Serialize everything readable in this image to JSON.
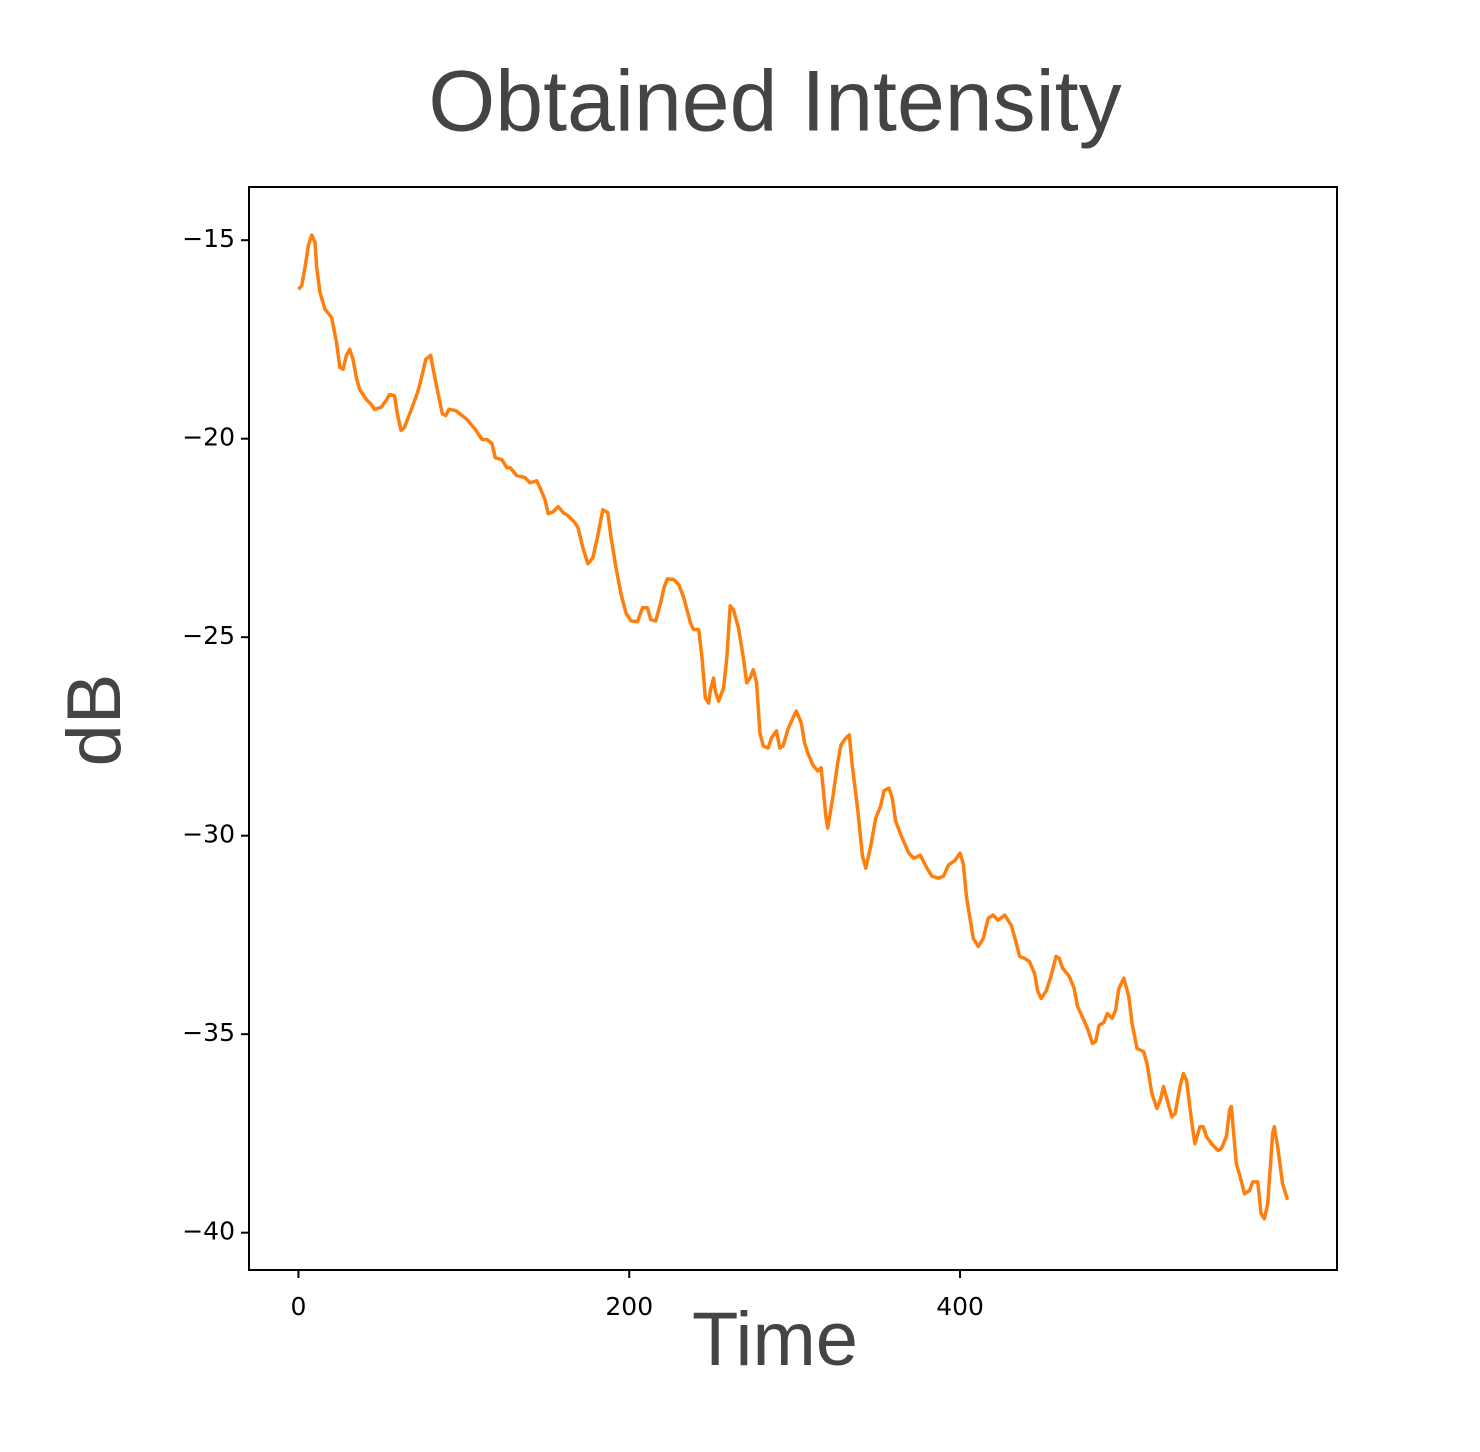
{
  "chart_data": {
    "type": "line",
    "title": "Obtained Intensity",
    "x_label": "Time",
    "y_label": "dB",
    "color": "#ff7f0e",
    "x": [
      0,
      2,
      4,
      6,
      8,
      10,
      11,
      13,
      16,
      18,
      20,
      23,
      25,
      27,
      29,
      31,
      33,
      35,
      37,
      41,
      44,
      46,
      50,
      53,
      55,
      58,
      60,
      62,
      64,
      68,
      72,
      74,
      77,
      80,
      81,
      84,
      87,
      89,
      91,
      95,
      99,
      102,
      107,
      111,
      114,
      117,
      119,
      123,
      126,
      128,
      132,
      137,
      140,
      144,
      146,
      149,
      151,
      154,
      157,
      160,
      163,
      167,
      169,
      172,
      175,
      178,
      181,
      184,
      187,
      189,
      192,
      195,
      198,
      201,
      205,
      208,
      211,
      213,
      216,
      219,
      221,
      223,
      227,
      230,
      233,
      237,
      239,
      242,
      244,
      246,
      248,
      249,
      251,
      252,
      254,
      257,
      259,
      261,
      263,
      266,
      269,
      271,
      273,
      275,
      277,
      279,
      281,
      284,
      286,
      289,
      291,
      293,
      296,
      299,
      301,
      304,
      306,
      308,
      311,
      314,
      316,
      319,
      320,
      323,
      326,
      328,
      331,
      333,
      335,
      338,
      341,
      343,
      346,
      349,
      352,
      354,
      357,
      359,
      361,
      365,
      369,
      372,
      376,
      380,
      383,
      387,
      390,
      393,
      397,
      400,
      402,
      404,
      406,
      408,
      411,
      414,
      417,
      420,
      423,
      427,
      431,
      434,
      436,
      439,
      442,
      445,
      447,
      449,
      452,
      455,
      458,
      460,
      462,
      466,
      469,
      471,
      473,
      477,
      480,
      482,
      484,
      487,
      489,
      492,
      494,
      496,
      499,
      502,
      504,
      507,
      511,
      513,
      516,
      519,
      521,
      523,
      525,
      528,
      530,
      533,
      535,
      537,
      540,
      542,
      545,
      547,
      549,
      552,
      556,
      558,
      561,
      563,
      564,
      567,
      569,
      572,
      575,
      577,
      580,
      582,
      584,
      586,
      589,
      590,
      592,
      595,
      598
    ],
    "values": [
      -16.24,
      -16.14,
      -15.68,
      -15.13,
      -14.87,
      -15.05,
      -15.68,
      -16.31,
      -16.74,
      -16.84,
      -16.94,
      -17.57,
      -18.2,
      -18.25,
      -17.9,
      -17.75,
      -18.0,
      -18.46,
      -18.76,
      -19.01,
      -19.14,
      -19.26,
      -19.21,
      -19.04,
      -18.89,
      -18.91,
      -19.42,
      -19.79,
      -19.72,
      -19.29,
      -18.84,
      -18.53,
      -18.0,
      -17.9,
      -18.15,
      -18.78,
      -19.37,
      -19.42,
      -19.26,
      -19.29,
      -19.42,
      -19.52,
      -19.77,
      -20.02,
      -20.02,
      -20.12,
      -20.48,
      -20.53,
      -20.73,
      -20.73,
      -20.93,
      -20.98,
      -21.11,
      -21.06,
      -21.23,
      -21.53,
      -21.89,
      -21.84,
      -21.71,
      -21.86,
      -21.94,
      -22.11,
      -22.24,
      -22.75,
      -23.15,
      -23.0,
      -22.44,
      -21.79,
      -21.86,
      -22.49,
      -23.25,
      -23.91,
      -24.39,
      -24.59,
      -24.61,
      -24.26,
      -24.26,
      -24.56,
      -24.59,
      -24.13,
      -23.75,
      -23.53,
      -23.55,
      -23.68,
      -24.01,
      -24.64,
      -24.81,
      -24.81,
      -25.52,
      -26.53,
      -26.66,
      -26.35,
      -26.03,
      -26.35,
      -26.61,
      -26.28,
      -25.52,
      -24.21,
      -24.31,
      -24.76,
      -25.52,
      -26.15,
      -26.03,
      -25.82,
      -26.15,
      -27.41,
      -27.74,
      -27.79,
      -27.54,
      -27.36,
      -27.79,
      -27.74,
      -27.31,
      -27.03,
      -26.86,
      -27.16,
      -27.66,
      -27.92,
      -28.22,
      -28.37,
      -28.29,
      -29.56,
      -29.81,
      -29.05,
      -28.17,
      -27.71,
      -27.54,
      -27.46,
      -28.29,
      -29.3,
      -30.51,
      -30.82,
      -30.26,
      -29.56,
      -29.25,
      -28.87,
      -28.8,
      -29.05,
      -29.63,
      -30.06,
      -30.44,
      -30.57,
      -30.49,
      -30.82,
      -31.02,
      -31.07,
      -31.02,
      -30.74,
      -30.62,
      -30.44,
      -30.72,
      -31.58,
      -32.08,
      -32.59,
      -32.79,
      -32.59,
      -32.08,
      -32.0,
      -32.13,
      -32.0,
      -32.26,
      -32.71,
      -33.04,
      -33.09,
      -33.17,
      -33.47,
      -33.92,
      -34.1,
      -33.92,
      -33.54,
      -33.04,
      -33.09,
      -33.34,
      -33.54,
      -33.85,
      -34.3,
      -34.48,
      -34.85,
      -35.23,
      -35.18,
      -34.78,
      -34.7,
      -34.48,
      -34.6,
      -34.4,
      -33.85,
      -33.59,
      -34.05,
      -34.73,
      -35.36,
      -35.44,
      -35.74,
      -36.5,
      -36.87,
      -36.67,
      -36.32,
      -36.62,
      -37.08,
      -37.0,
      -36.32,
      -35.99,
      -36.17,
      -37.2,
      -37.76,
      -37.33,
      -37.33,
      -37.58,
      -37.76,
      -37.93,
      -37.88,
      -37.58,
      -36.9,
      -36.82,
      -38.26,
      -38.54,
      -39.02,
      -38.94,
      -38.72,
      -38.72,
      -39.52,
      -39.65,
      -39.27,
      -37.5,
      -37.33,
      -37.83,
      -38.77,
      -39.17
    ],
    "xlim": [
      -29.9,
      627.9
    ],
    "xticks": [
      0,
      200,
      400
    ],
    "ylim": [
      -40.94,
      -13.66
    ],
    "yticks": [
      {
        "value": -15,
        "label": "−15"
      },
      {
        "value": -20,
        "label": "−20"
      },
      {
        "value": -25,
        "label": "−25"
      },
      {
        "value": -30,
        "label": "−30"
      },
      {
        "value": -35,
        "label": "−35"
      },
      {
        "value": -40,
        "label": "−40"
      }
    ]
  }
}
